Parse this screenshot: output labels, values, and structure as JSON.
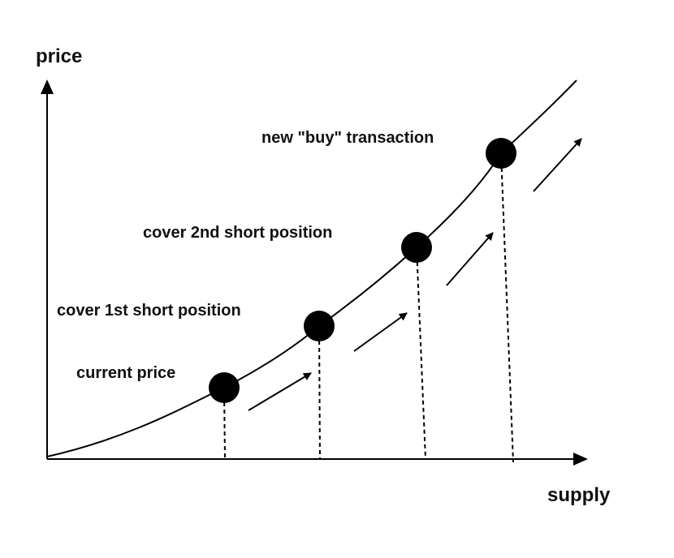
{
  "axes": {
    "y_label": "price",
    "x_label": "supply"
  },
  "points": [
    {
      "label": "current price"
    },
    {
      "label": "cover 1st short position"
    },
    {
      "label": "cover 2nd short position"
    },
    {
      "label": "new \"buy\" transaction"
    }
  ],
  "colors": {
    "ink": "#000000",
    "background": "#ffffff"
  }
}
